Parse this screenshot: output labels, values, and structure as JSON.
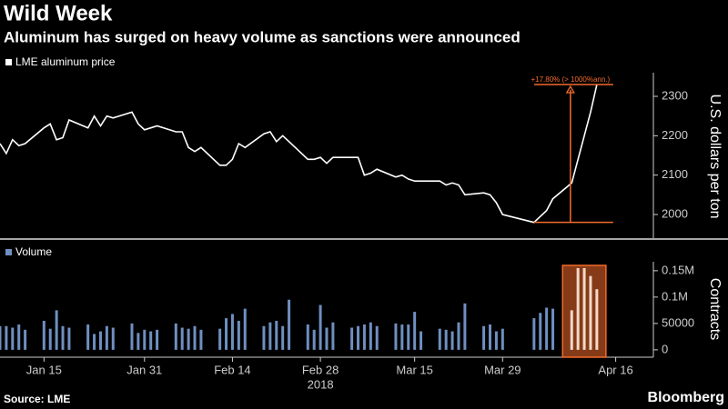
{
  "title": "Wild Week",
  "subtitle": "Aluminum has surged on heavy volume as sanctions were announced",
  "source": "Source: LME",
  "brand": "Bloomberg",
  "chart_data": [
    {
      "type": "line",
      "legend": "LME aluminum price",
      "ylabel": "U.S. dollars per ton",
      "color": "#ffffff",
      "annotation": "+17.80% (> 1000%ann.)",
      "annotation_color": "#f26b2b",
      "xlim": [
        "2018-01-08",
        "2018-04-22"
      ],
      "ylim": [
        1940,
        2360
      ],
      "yticks": [
        2000,
        2100,
        2200,
        2300
      ],
      "x": [
        "2018-01-08",
        "2018-01-09",
        "2018-01-10",
        "2018-01-11",
        "2018-01-12",
        "2018-01-15",
        "2018-01-16",
        "2018-01-17",
        "2018-01-18",
        "2018-01-19",
        "2018-01-22",
        "2018-01-23",
        "2018-01-24",
        "2018-01-25",
        "2018-01-26",
        "2018-01-29",
        "2018-01-30",
        "2018-01-31",
        "2018-02-01",
        "2018-02-02",
        "2018-02-05",
        "2018-02-06",
        "2018-02-07",
        "2018-02-08",
        "2018-02-09",
        "2018-02-12",
        "2018-02-13",
        "2018-02-14",
        "2018-02-15",
        "2018-02-16",
        "2018-02-19",
        "2018-02-20",
        "2018-02-21",
        "2018-02-22",
        "2018-02-23",
        "2018-02-26",
        "2018-02-27",
        "2018-02-28",
        "2018-03-01",
        "2018-03-02",
        "2018-03-05",
        "2018-03-06",
        "2018-03-07",
        "2018-03-08",
        "2018-03-09",
        "2018-03-12",
        "2018-03-13",
        "2018-03-14",
        "2018-03-15",
        "2018-03-16",
        "2018-03-19",
        "2018-03-20",
        "2018-03-21",
        "2018-03-22",
        "2018-03-23",
        "2018-03-26",
        "2018-03-27",
        "2018-03-28",
        "2018-03-29",
        "2018-04-03",
        "2018-04-04",
        "2018-04-05",
        "2018-04-06",
        "2018-04-09",
        "2018-04-10",
        "2018-04-11",
        "2018-04-12",
        "2018-04-13"
      ],
      "values": [
        2180,
        2155,
        2190,
        2175,
        2180,
        2220,
        2230,
        2190,
        2195,
        2240,
        2220,
        2250,
        2225,
        2250,
        2245,
        2260,
        2230,
        2215,
        2220,
        2225,
        2210,
        2210,
        2170,
        2160,
        2170,
        2125,
        2125,
        2140,
        2180,
        2170,
        2205,
        2210,
        2185,
        2200,
        2185,
        2140,
        2140,
        2145,
        2130,
        2145,
        2145,
        2145,
        2100,
        2105,
        2115,
        2095,
        2100,
        2090,
        2085,
        2085,
        2085,
        2075,
        2080,
        2075,
        2050,
        2055,
        2050,
        2030,
        2000,
        1980,
        1995,
        2010,
        2040,
        2080,
        2140,
        2200,
        2260,
        2330
      ]
    },
    {
      "type": "bar",
      "legend": "Volume",
      "ylabel": "Contracts",
      "color": "#6f8fc0",
      "highlight_color": "#f26b2b",
      "xlim": [
        "2018-01-08",
        "2018-04-22"
      ],
      "xticks": [
        {
          "value": "2018-01-15",
          "label": "Jan 15"
        },
        {
          "value": "2018-01-31",
          "label": "Jan 31"
        },
        {
          "value": "2018-02-14",
          "label": "Feb 14"
        },
        {
          "value": "2018-02-28",
          "label": "Feb 28"
        },
        {
          "value": "2018-03-15",
          "label": "Mar 15"
        },
        {
          "value": "2018-03-29",
          "label": "Mar 29"
        },
        {
          "value": "2018-04-16",
          "label": "Apr 16"
        }
      ],
      "xsublabel": "2018",
      "ylim": [
        -14000,
        167000
      ],
      "yticks": [
        0,
        50000,
        {
          "value": 100000,
          "label": "0.1M"
        },
        {
          "value": 150000,
          "label": "0.15M"
        }
      ],
      "x": [
        "2018-01-08",
        "2018-01-09",
        "2018-01-10",
        "2018-01-11",
        "2018-01-12",
        "2018-01-15",
        "2018-01-16",
        "2018-01-17",
        "2018-01-18",
        "2018-01-19",
        "2018-01-22",
        "2018-01-23",
        "2018-01-24",
        "2018-01-25",
        "2018-01-26",
        "2018-01-29",
        "2018-01-30",
        "2018-01-31",
        "2018-02-01",
        "2018-02-02",
        "2018-02-05",
        "2018-02-06",
        "2018-02-07",
        "2018-02-08",
        "2018-02-09",
        "2018-02-12",
        "2018-02-13",
        "2018-02-14",
        "2018-02-15",
        "2018-02-16",
        "2018-02-19",
        "2018-02-20",
        "2018-02-21",
        "2018-02-22",
        "2018-02-23",
        "2018-02-26",
        "2018-02-27",
        "2018-02-28",
        "2018-03-01",
        "2018-03-02",
        "2018-03-05",
        "2018-03-06",
        "2018-03-07",
        "2018-03-08",
        "2018-03-09",
        "2018-03-12",
        "2018-03-13",
        "2018-03-14",
        "2018-03-15",
        "2018-03-16",
        "2018-03-19",
        "2018-03-20",
        "2018-03-21",
        "2018-03-22",
        "2018-03-23",
        "2018-03-26",
        "2018-03-27",
        "2018-03-28",
        "2018-03-29",
        "2018-04-03",
        "2018-04-04",
        "2018-04-05",
        "2018-04-06",
        "2018-04-09",
        "2018-04-10",
        "2018-04-11",
        "2018-04-12",
        "2018-04-13"
      ],
      "values": [
        45000,
        45000,
        42000,
        48000,
        38000,
        55000,
        40000,
        75000,
        45000,
        42000,
        48000,
        30000,
        35000,
        45000,
        42000,
        50000,
        32000,
        38000,
        35000,
        38000,
        50000,
        42000,
        40000,
        45000,
        38000,
        40000,
        60000,
        68000,
        55000,
        78000,
        45000,
        52000,
        55000,
        45000,
        95000,
        48000,
        38000,
        85000,
        42000,
        52000,
        42000,
        45000,
        48000,
        52000,
        45000,
        50000,
        48000,
        48000,
        72000,
        35000,
        40000,
        38000,
        35000,
        52000,
        88000,
        45000,
        48000,
        35000,
        40000,
        60000,
        70000,
        80000,
        78000,
        75000,
        155000,
        155000,
        140000,
        115000
      ]
    }
  ]
}
